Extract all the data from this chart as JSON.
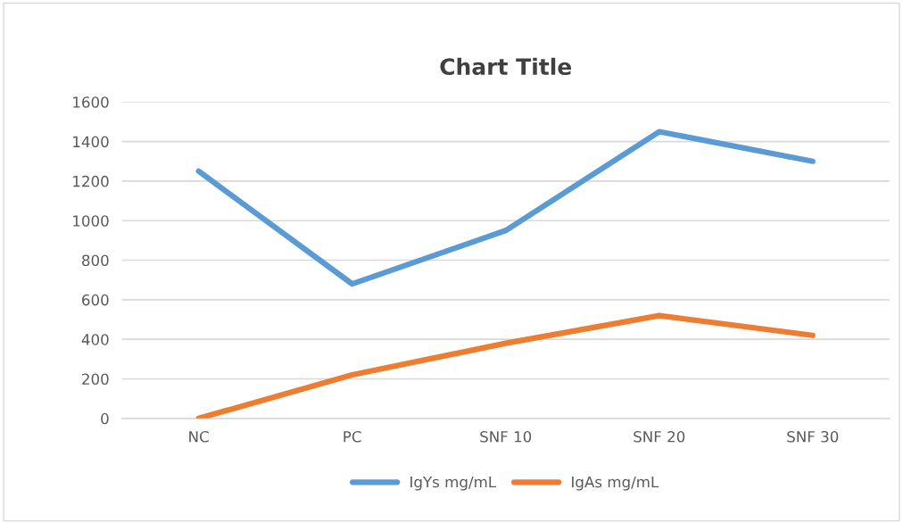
{
  "chart_data": {
    "type": "line",
    "title": "Chart Title",
    "categories": [
      "NC",
      "PC",
      "SNF 10",
      "SNF 20",
      "SNF 30"
    ],
    "series": [
      {
        "name": "IgYs mg/mL",
        "color": "#5b9bd5",
        "values": [
          1250,
          680,
          950,
          1450,
          1300
        ]
      },
      {
        "name": "IgAs mg/mL",
        "color": "#ed7d31",
        "values": [
          0,
          220,
          380,
          520,
          420
        ]
      }
    ],
    "ylim": [
      0,
      1600
    ],
    "yticks": [
      0,
      200,
      400,
      600,
      800,
      1000,
      1200,
      1400,
      1600
    ],
    "grid": "y",
    "legend": "bottom",
    "marker": "none",
    "line_style": "solid"
  }
}
